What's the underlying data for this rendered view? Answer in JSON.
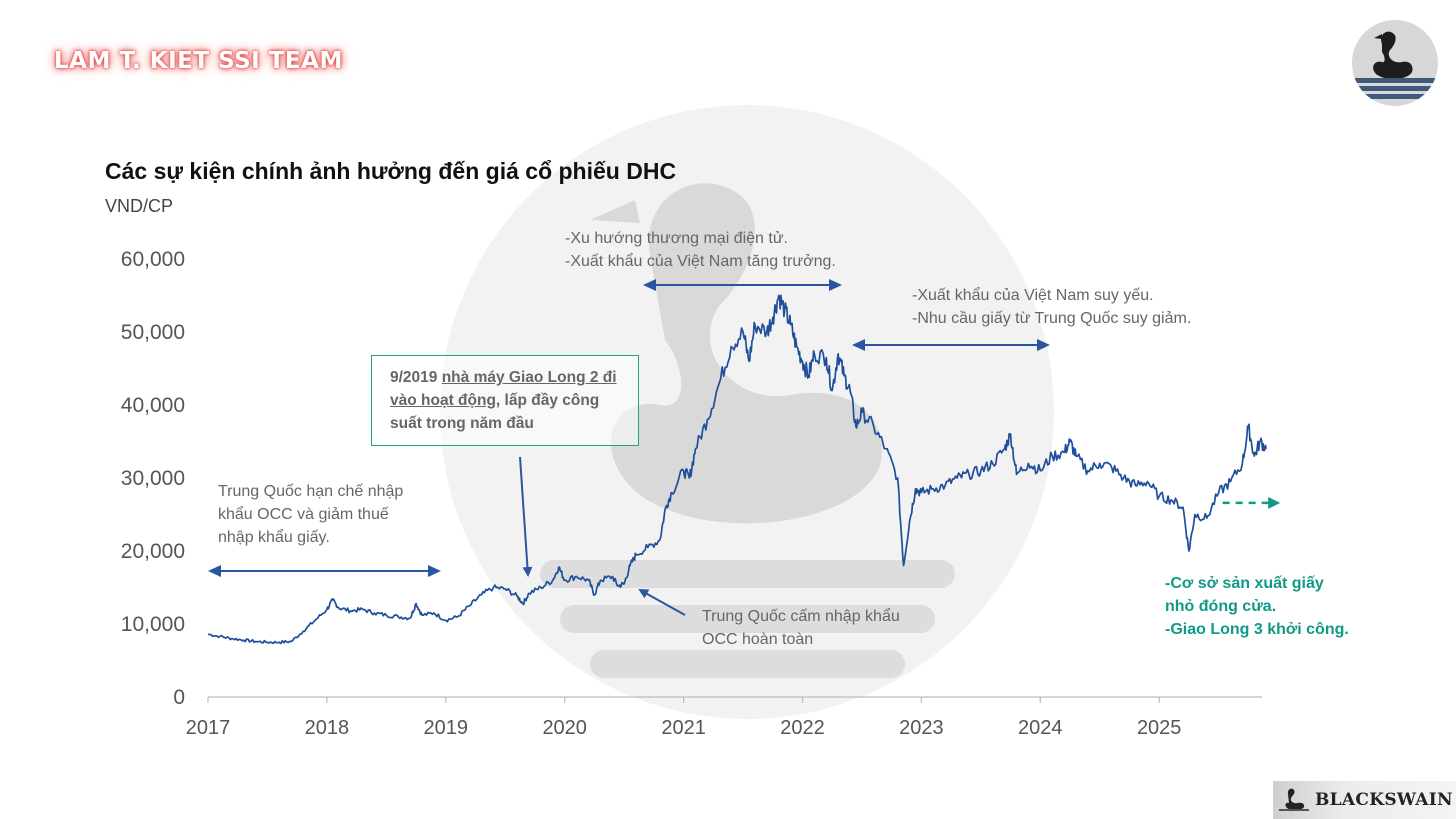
{
  "header": {
    "team_badge": "LAM T. KIET SSI TEAM",
    "brand_footer": "BLACKSWAIN"
  },
  "colors": {
    "series": "#1f4e9a",
    "arrow": "#2a55a0",
    "accent_green": "#109a85",
    "badge_glow": "#e0413f",
    "watermark": "#d9d9d9"
  },
  "icons": {
    "top_logo": "black-swan-logo-icon",
    "footer_logo": "swan-icon"
  },
  "annotations": {
    "trade_restriction": "Trung Quốc hạn chế nhập\nkhẩu OCC và giảm thuế\nnhập khẩu giấy.",
    "giao_long_prefix": "9/2019 ",
    "giao_long_link": "nhà máy Giao Long 2 đi vào hoạt động",
    "giao_long_suffix": ", lấp đầy công suất trong năm đầu",
    "ecommerce": "-Xu hướng thương mại điện tử.\n-Xuất khẩu của Việt Nam tăng trưởng.",
    "export_weak": "-Xuất khẩu của Việt Nam suy yếu.\n-Nhu cầu giấy từ Trung Quốc suy giảm.",
    "occ_ban": "Trung Quốc cấm nhập khẩu\nOCC hoàn toàn",
    "outlook": "-Cơ sở sản xuất giấy\nnhỏ đóng cửa.\n-Giao Long 3 khởi công."
  },
  "chart_data": {
    "type": "line",
    "title": "Các sự kiện chính ảnh hưởng đến giá cổ phiếu DHC",
    "ylabel": "VND/CP",
    "xlabel": "",
    "ylim": [
      0,
      60000
    ],
    "xlim": [
      2017.0,
      2025.9
    ],
    "grid": false,
    "y_ticks": [
      0,
      10000,
      20000,
      30000,
      40000,
      50000,
      60000
    ],
    "y_tick_labels": [
      "0",
      "10,000",
      "20,000",
      "30,000",
      "40,000",
      "50,000",
      "60,000"
    ],
    "x_ticks": [
      2017,
      2018,
      2019,
      2020,
      2021,
      2022,
      2023,
      2024,
      2025
    ],
    "x_tick_labels": [
      "2017",
      "2018",
      "2019",
      "2020",
      "2021",
      "2022",
      "2023",
      "2024",
      "2025"
    ],
    "series": [
      {
        "x": [
          2017.0,
          2017.1,
          2017.2,
          2017.3,
          2017.4,
          2017.5,
          2017.6,
          2017.7,
          2017.8,
          2017.9,
          2018.0,
          2018.05,
          2018.1,
          2018.2,
          2018.3,
          2018.4,
          2018.5,
          2018.6,
          2018.7,
          2018.75,
          2018.8,
          2018.9,
          2019.0,
          2019.1,
          2019.2,
          2019.3,
          2019.4,
          2019.5,
          2019.6,
          2019.65,
          2019.7,
          2019.8,
          2019.9,
          2019.95,
          2020.0,
          2020.1,
          2020.2,
          2020.25,
          2020.3,
          2020.4,
          2020.45,
          2020.5,
          2020.55,
          2020.6,
          2020.7,
          2020.8,
          2020.85,
          2020.9,
          2021.0,
          2021.05,
          2021.1,
          2021.2,
          2021.3,
          2021.4,
          2021.5,
          2021.55,
          2021.6,
          2021.7,
          2021.75,
          2021.8,
          2021.85,
          2021.9,
          2021.95,
          2022.0,
          2022.05,
          2022.1,
          2022.2,
          2022.25,
          2022.3,
          2022.35,
          2022.4,
          2022.45,
          2022.5,
          2022.6,
          2022.7,
          2022.8,
          2022.85,
          2022.9,
          2022.95,
          2023.0,
          2023.1,
          2023.2,
          2023.3,
          2023.4,
          2023.5,
          2023.6,
          2023.7,
          2023.75,
          2023.8,
          2023.9,
          2024.0,
          2024.1,
          2024.2,
          2024.25,
          2024.3,
          2024.4,
          2024.5,
          2024.6,
          2024.7,
          2024.8,
          2024.9,
          2025.0,
          2025.1,
          2025.2,
          2025.25,
          2025.3,
          2025.4,
          2025.5,
          2025.6,
          2025.7,
          2025.75,
          2025.8,
          2025.85,
          2025.9
        ],
        "values": [
          8600,
          8300,
          8000,
          7800,
          7600,
          7500,
          7500,
          7600,
          9000,
          10500,
          12000,
          13300,
          12200,
          11800,
          12000,
          11500,
          11200,
          11000,
          10800,
          12800,
          11200,
          11500,
          10500,
          11000,
          12500,
          14000,
          15000,
          14800,
          13800,
          12800,
          14200,
          15000,
          16000,
          17800,
          16000,
          16500,
          16000,
          14000,
          16000,
          16500,
          15200,
          15500,
          18000,
          19500,
          20500,
          21500,
          26000,
          28000,
          31000,
          30000,
          34000,
          38000,
          43000,
          48000,
          50000,
          46000,
          51000,
          50000,
          52000,
          55000,
          53000,
          51000,
          48000,
          46000,
          44000,
          47000,
          46500,
          42000,
          47000,
          44000,
          42000,
          37000,
          39000,
          37000,
          34000,
          30000,
          18000,
          24000,
          28500,
          28000,
          28500,
          29000,
          30000,
          30500,
          31000,
          32000,
          34000,
          36000,
          30500,
          32000,
          31000,
          33000,
          33500,
          35000,
          33000,
          31000,
          32000,
          31500,
          30000,
          29000,
          29500,
          27500,
          27000,
          26000,
          20000,
          25000,
          24500,
          28000,
          29500,
          32000,
          37000,
          33000,
          35000,
          34000
        ]
      }
    ],
    "projection": {
      "x": [
        2025.5,
        2025.95
      ],
      "values": [
        27000,
        27000
      ]
    }
  }
}
